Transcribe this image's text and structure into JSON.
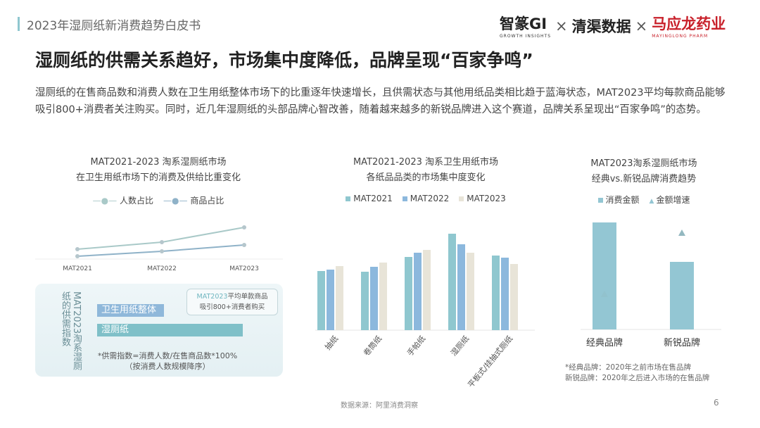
{
  "header": {
    "title": "2023年湿厕纸新消费趋势白皮书",
    "logos": {
      "zhizhuan": "智篆GI",
      "zhizhuan_sub": "GROWTH INSIGHTS",
      "sep": "×",
      "qingqu": "清渠数据",
      "mayinglong": "马应龙药业",
      "mayinglong_sub": "MAYINGLONG PHARM"
    }
  },
  "main_title": "湿厕纸的供需关系趋好，市场集中度降低，品牌呈现“百家争鸣”",
  "body_text": "湿厕纸的在售商品数和消费人数在卫生用纸整体市场下的比重逐年快速增长，且供需状态与其他用纸品类相比趋于蓝海状态，MAT2023平均每款商品能够吸引800+消费者关注购买。同时，近几年湿厕纸的头部品牌心智改善，随着越来越多的新锐品牌进入这个赛道，品牌关系呈现出“百家争鸣”的态势。",
  "colors": {
    "teal": "#8fc7cf",
    "blue": "#8cb8dd",
    "beige": "#e8e4d8",
    "line1": "#a9c9c8",
    "line2": "#8fb2c8"
  },
  "chart_data": [
    {
      "type": "line",
      "title": "MAT2021-2023 淘系湿厕纸市场",
      "subtitle": "在卫生用纸市场下的消费及供给比重变化",
      "categories": [
        "MAT2021",
        "MAT2022",
        "MAT2023"
      ],
      "axis_values_shown": false,
      "grid": false,
      "legend": "top",
      "series": [
        {
          "name": "人数占比",
          "values": [
            14,
            24,
            45
          ]
        },
        {
          "name": "商品占比",
          "values": [
            4,
            11,
            20
          ]
        }
      ]
    },
    {
      "type": "bar",
      "title": "MAT2023淘系湿厕纸的供需指数",
      "orientation": "horizontal",
      "categories": [
        "卫生用纸整体",
        "湿厕纸"
      ],
      "values": [
        46,
        100
      ],
      "axis_values_shown": false,
      "callout": {
        "highlight": "MAT2023",
        "text": "平均单款商品",
        "text2": "吸引800+消费者购买"
      },
      "note": "*供需指数=消费人数/在售商品数*100%",
      "note2": "（按消费人数规模降序）"
    },
    {
      "type": "bar",
      "title": "MAT2021-2023 淘系卫生用纸市场",
      "subtitle": "各纸品品类的市场集中度变化",
      "categories": [
        "抽纸",
        "卷筒纸",
        "手帕纸",
        "湿厕纸",
        "平板式/挂抽式厕纸"
      ],
      "axis_values_shown": false,
      "legend": "top",
      "series": [
        {
          "name": "MAT2021",
          "values": [
            84,
            83,
            104,
            137,
            106
          ]
        },
        {
          "name": "MAT2022",
          "values": [
            86,
            90,
            110,
            122,
            103
          ]
        },
        {
          "name": "MAT2023",
          "values": [
            91,
            96,
            114,
            110,
            94
          ]
        }
      ]
    },
    {
      "type": "bar",
      "title": "MAT2023淘系湿厕纸市场",
      "subtitle": "经典vs.新锐品牌消费趋势",
      "categories": [
        "经典品牌",
        "新锐品牌"
      ],
      "axis_values_shown": false,
      "legend": "top",
      "series": [
        {
          "name": "消费金额",
          "type": "bar",
          "values": [
            152,
            96
          ]
        },
        {
          "name": "金额增速",
          "type": "scatter-triangle",
          "values": [
            50,
            137
          ]
        }
      ],
      "note": "*经典品牌：2020年之前市场在售品牌",
      "note2": "新锐品牌：2020年之后进入市场的在售品牌"
    }
  ],
  "footer": {
    "source": "数据来源：阿里消费洞察",
    "page": "6"
  }
}
